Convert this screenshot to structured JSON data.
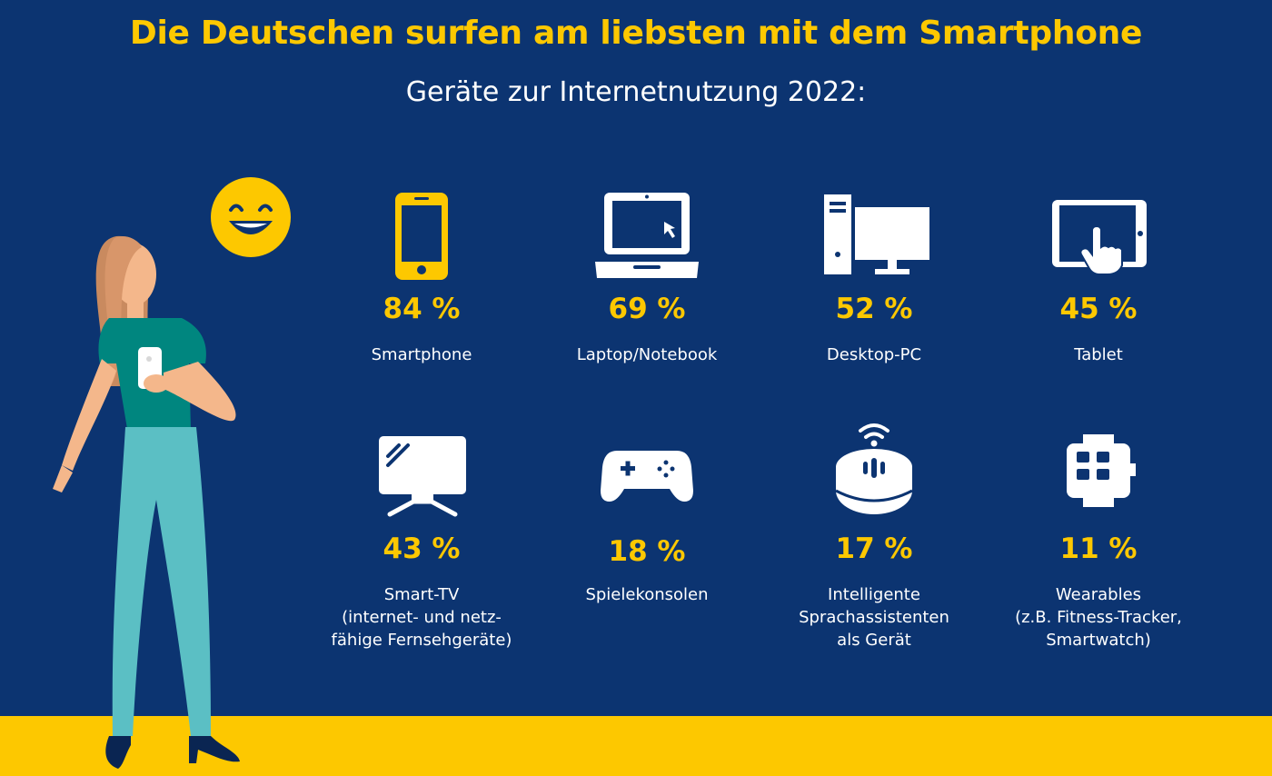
{
  "header": {
    "title": "Die Deutschen surfen am liebsten mit dem Smartphone",
    "subtitle": "Geräte zur Internetnutzung 2022:"
  },
  "colors": {
    "background": "#0c3471",
    "accent": "#fdc800",
    "text": "#ffffff"
  },
  "devices": [
    {
      "icon": "smartphone-icon",
      "value": "84 %",
      "label": "Smartphone"
    },
    {
      "icon": "laptop-icon",
      "value": "69 %",
      "label": "Laptop/Notebook"
    },
    {
      "icon": "desktop-pc-icon",
      "value": "52 %",
      "label": "Desktop-PC"
    },
    {
      "icon": "tablet-icon",
      "value": "45 %",
      "label": "Tablet"
    },
    {
      "icon": "smart-tv-icon",
      "value": "43 %",
      "label": "Smart-TV\n(internet- und netz-\nfähige Fernsehgeräte)"
    },
    {
      "icon": "gamepad-icon",
      "value": "18 %",
      "label": "Spielekonsolen"
    },
    {
      "icon": "smart-speaker-icon",
      "value": "17 %",
      "label": "Intelligente\nSprachassistenten\nals Gerät"
    },
    {
      "icon": "smartwatch-icon",
      "value": "11 %",
      "label": "Wearables\n(z.B. Fitness-Tracker,\nSmartwatch)"
    }
  ]
}
